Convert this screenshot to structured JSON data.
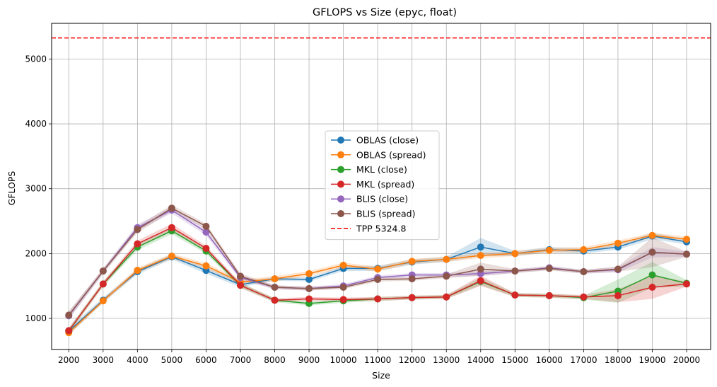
{
  "chart_data": {
    "type": "line",
    "title": "GFLOPS vs Size (epyc, float)",
    "xlabel": "Size",
    "ylabel": "GFLOPS",
    "x": [
      2000,
      3000,
      4000,
      5000,
      6000,
      7000,
      8000,
      9000,
      10000,
      11000,
      12000,
      13000,
      14000,
      15000,
      16000,
      17000,
      18000,
      19000,
      20000
    ],
    "xtick_labels": [
      "2000",
      "3000",
      "4000",
      "5000",
      "6000",
      "7000",
      "8000",
      "9000",
      "10000",
      "11000",
      "12000",
      "13000",
      "14000",
      "15000",
      "16000",
      "17000",
      "18000",
      "19000",
      "20000"
    ],
    "yticks": [
      1000,
      2000,
      3000,
      4000,
      5000
    ],
    "ytick_labels": [
      "1000",
      "2000",
      "3000",
      "4000",
      "5000"
    ],
    "xlim": [
      1500,
      20700
    ],
    "ylim": [
      520,
      5550
    ],
    "grid": true,
    "legend_position": "center",
    "series": [
      {
        "name": "OBLAS (close)",
        "color": "#1f77b4",
        "values": [
          800,
          1280,
          1720,
          1950,
          1740,
          1520,
          1610,
          1600,
          1770,
          1770,
          1870,
          1910,
          2100,
          2000,
          2060,
          2040,
          2100,
          2270,
          2180
        ],
        "band": [
          50,
          40,
          40,
          40,
          50,
          40,
          30,
          30,
          40,
          40,
          40,
          40,
          140,
          40,
          40,
          40,
          40,
          50,
          40
        ]
      },
      {
        "name": "OBLAS (spread)",
        "color": "#ff7f0e",
        "values": [
          780,
          1270,
          1740,
          1960,
          1810,
          1560,
          1610,
          1690,
          1820,
          1760,
          1880,
          1910,
          1970,
          2000,
          2050,
          2060,
          2160,
          2280,
          2220
        ],
        "band": [
          40,
          30,
          40,
          40,
          40,
          40,
          40,
          40,
          40,
          40,
          40,
          40,
          40,
          40,
          40,
          40,
          40,
          40,
          40
        ]
      },
      {
        "name": "MKL (close)",
        "color": "#2ca02c",
        "values": [
          810,
          1530,
          2100,
          2350,
          2040,
          1510,
          1280,
          1230,
          1270,
          1300,
          1320,
          1330,
          1570,
          1360,
          1350,
          1320,
          1420,
          1670,
          1540
        ],
        "band": [
          40,
          40,
          50,
          50,
          40,
          40,
          30,
          30,
          30,
          30,
          30,
          30,
          60,
          30,
          30,
          30,
          180,
          200,
          50
        ]
      },
      {
        "name": "MKL (spread)",
        "color": "#d62728",
        "values": [
          810,
          1530,
          2150,
          2400,
          2080,
          1510,
          1280,
          1300,
          1290,
          1300,
          1320,
          1330,
          1580,
          1360,
          1350,
          1330,
          1350,
          1480,
          1530
        ],
        "band": [
          40,
          40,
          50,
          60,
          40,
          40,
          30,
          30,
          30,
          30,
          30,
          30,
          80,
          30,
          30,
          30,
          100,
          180,
          40
        ]
      },
      {
        "name": "BLIS (close)",
        "color": "#9467bd",
        "values": [
          1040,
          1730,
          2400,
          2670,
          2330,
          1630,
          1480,
          1460,
          1500,
          1630,
          1670,
          1670,
          1690,
          1730,
          1780,
          1720,
          1750,
          2020,
          1990
        ],
        "band": [
          60,
          40,
          50,
          50,
          50,
          40,
          30,
          30,
          30,
          30,
          30,
          30,
          40,
          30,
          30,
          30,
          40,
          80,
          40
        ]
      },
      {
        "name": "BLIS (spread)",
        "color": "#8c564b",
        "values": [
          1050,
          1730,
          2370,
          2700,
          2420,
          1650,
          1480,
          1460,
          1480,
          1600,
          1610,
          1650,
          1760,
          1730,
          1770,
          1720,
          1760,
          2020,
          1990
        ],
        "band": [
          60,
          40,
          50,
          50,
          40,
          40,
          30,
          30,
          30,
          30,
          30,
          30,
          100,
          30,
          30,
          30,
          40,
          230,
          40
        ]
      }
    ],
    "reference_line": {
      "name": "TPP 5324.8",
      "value": 5324.8,
      "color": "#ff0000"
    }
  }
}
